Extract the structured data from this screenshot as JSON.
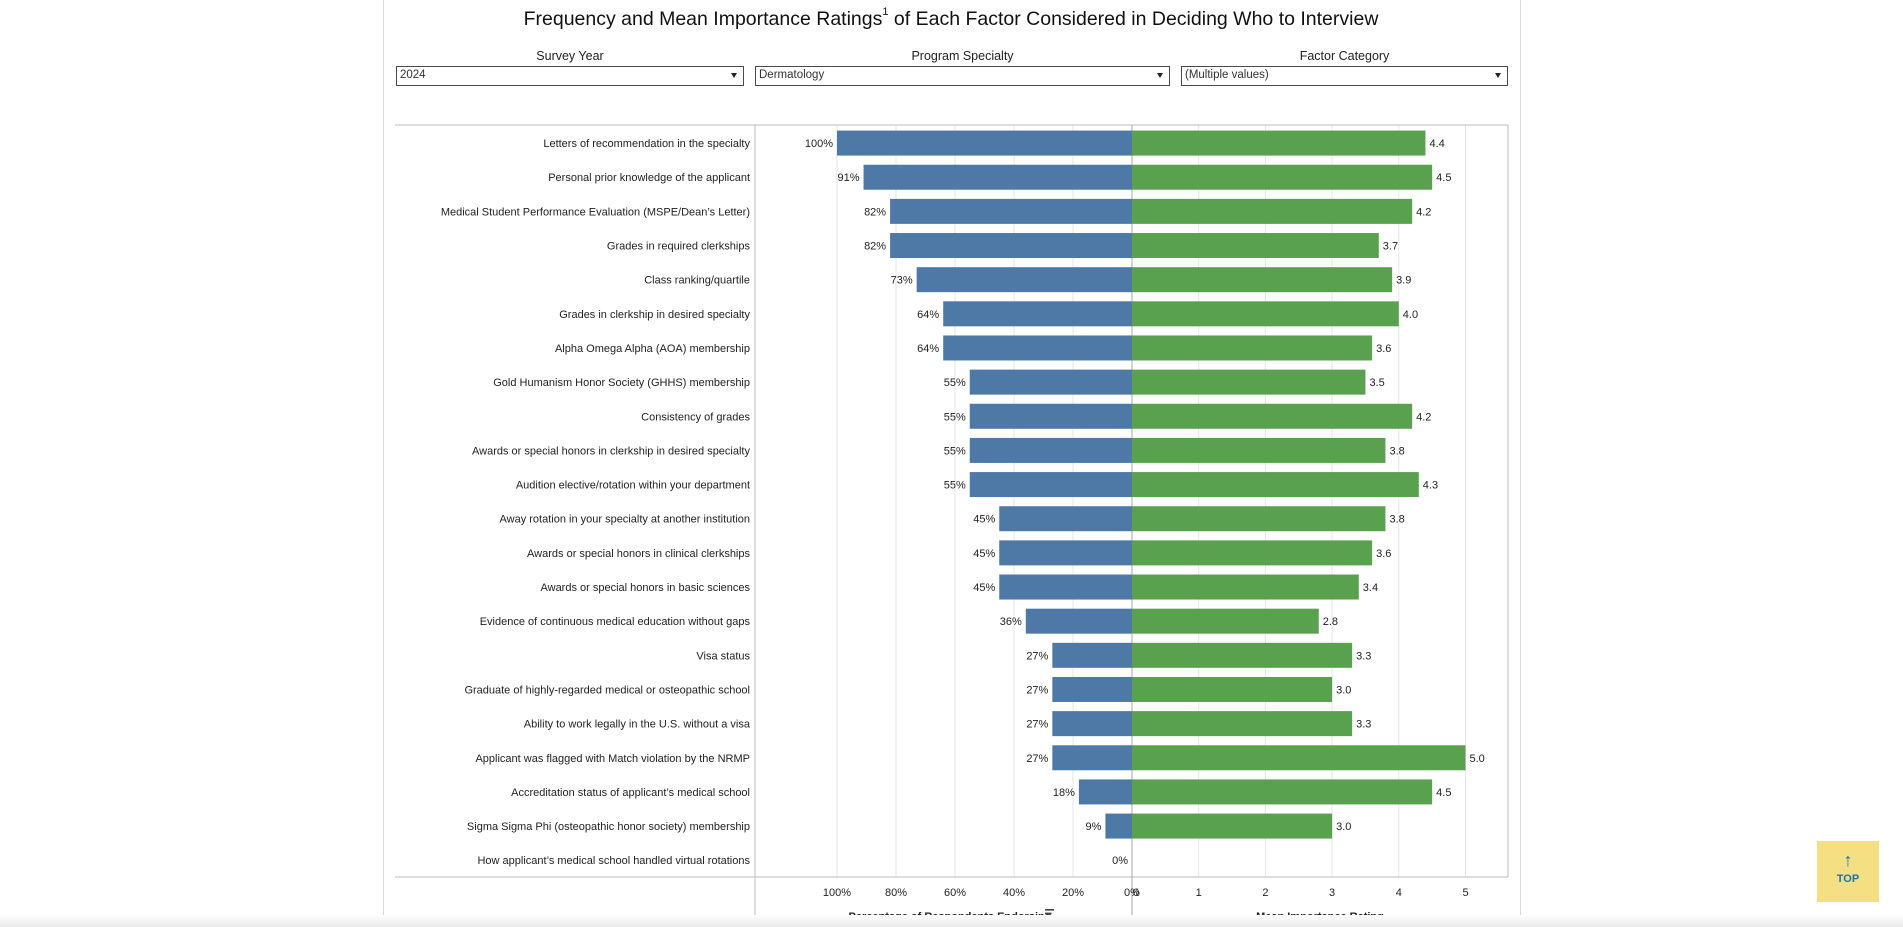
{
  "title": "Frequency and Mean Importance Ratings",
  "title_sup": "1",
  "title_tail": " of Each Factor Considered in Deciding Who to Interview",
  "filters": [
    {
      "label": "Survey Year",
      "value": "2024"
    },
    {
      "label": "Program Specialty",
      "value": "Dermatology"
    },
    {
      "label": "Factor Category",
      "value": "(Multiple values)"
    }
  ],
  "top_button": {
    "arrow": "↑",
    "label": "TOP"
  },
  "colors": {
    "pct_bar": "#4e79a7",
    "mean_bar": "#59a14f",
    "grid": "#e6e6e6",
    "axis": "#bdbdbd"
  },
  "icons": {
    "sort": "sort-icon",
    "dropdown": "dropdown-caret-icon",
    "top": "arrow-up-icon"
  },
  "chart_data": {
    "type": "bar",
    "layout": "diverging-dual-panel",
    "categories": [
      "Letters of recommendation in the specialty",
      "Personal prior knowledge of the applicant",
      "Medical Student Performance Evaluation (MSPE/Dean’s Letter)",
      "Grades in required clerkships",
      "Class ranking/quartile",
      "Grades in clerkship in desired specialty",
      "Alpha Omega Alpha (AOA) membership",
      "Gold Humanism Honor Society (GHHS) membership",
      "Consistency of grades",
      "Awards or special honors in clerkship in desired specialty",
      "Audition elective/rotation within your department",
      "Away rotation in your specialty at another institution",
      "Awards or special honors in clinical clerkships",
      "Awards or special honors in basic sciences",
      "Evidence of continuous medical education without gaps",
      "Visa status",
      "Graduate of highly-regarded medical or osteopathic school",
      "Ability to work legally in the U.S. without a visa",
      "Applicant was flagged with Match violation by the NRMP",
      "Accreditation status of applicant’s medical school",
      "Sigma Sigma Phi (osteopathic honor society) membership",
      "How applicant’s medical school handled virtual rotations"
    ],
    "series": [
      {
        "name": "Percentage of Respondents Endorsing",
        "values": [
          100,
          91,
          82,
          82,
          73,
          64,
          64,
          55,
          55,
          55,
          55,
          45,
          45,
          45,
          36,
          27,
          27,
          27,
          27,
          18,
          9,
          0
        ],
        "labels": [
          "100%",
          "91%",
          "82%",
          "82%",
          "73%",
          "64%",
          "64%",
          "55%",
          "55%",
          "55%",
          "55%",
          "45%",
          "45%",
          "45%",
          "36%",
          "27%",
          "27%",
          "27%",
          "27%",
          "18%",
          "9%",
          "0%"
        ]
      },
      {
        "name": "Mean Importance Rating",
        "values": [
          4.4,
          4.5,
          4.2,
          3.7,
          3.9,
          4.0,
          3.6,
          3.5,
          4.2,
          3.8,
          4.3,
          3.8,
          3.6,
          3.4,
          2.8,
          3.3,
          3.0,
          3.3,
          5.0,
          4.5,
          3.0,
          null
        ],
        "labels": [
          "4.4",
          "4.5",
          "4.2",
          "3.7",
          "3.9",
          "4.0",
          "3.6",
          "3.5",
          "4.2",
          "3.8",
          "4.3",
          "3.8",
          "3.6",
          "3.4",
          "2.8",
          "3.3",
          "3.0",
          "3.3",
          "5.0",
          "4.5",
          "3.0",
          ""
        ]
      }
    ],
    "left_axis": {
      "label": "Percentage of Respondents Endorsing",
      "reversed": true,
      "range": [
        0,
        115
      ],
      "ticks": [
        "100%",
        "80%",
        "60%",
        "40%",
        "20%",
        "0%"
      ],
      "tick_values": [
        100,
        80,
        60,
        40,
        20,
        0
      ]
    },
    "right_axis": {
      "label": "Mean Importance Rating",
      "range": [
        0,
        5.6
      ],
      "ticks": [
        "0",
        "1",
        "2",
        "3",
        "4",
        "5"
      ],
      "tick_values": [
        0,
        1,
        2,
        3,
        4,
        5
      ]
    },
    "grid": true,
    "legend": "none"
  }
}
